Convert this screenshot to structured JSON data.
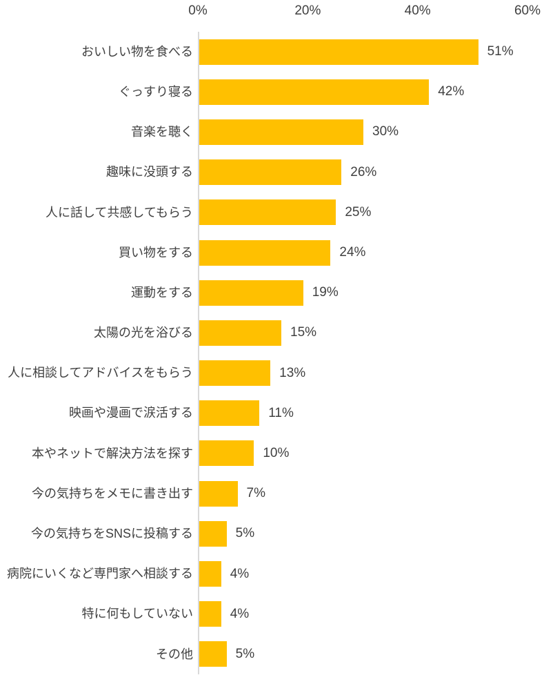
{
  "chart_data": {
    "type": "bar",
    "orientation": "horizontal",
    "title": "",
    "xlabel": "",
    "ylabel": "",
    "categories": [
      "おいしい物を食べる",
      "ぐっすり寝る",
      "音楽を聴く",
      "趣味に没頭する",
      "人に話して共感してもらう",
      "買い物をする",
      "運動をする",
      "太陽の光を浴びる",
      "人に相談してアドバイスをもらう",
      "映画や漫画で涙活する",
      "本やネットで解決方法を探す",
      "今の気持ちをメモに書き出す",
      "今の気持ちをSNSに投稿する",
      "病院にいくなど専門家へ相談する",
      "特に何もしていない",
      "その他"
    ],
    "values": [
      51,
      42,
      30,
      26,
      25,
      24,
      19,
      15,
      13,
      11,
      10,
      7,
      5,
      4,
      4,
      5
    ],
    "value_labels": [
      "51%",
      "42%",
      "30%",
      "26%",
      "25%",
      "24%",
      "19%",
      "15%",
      "13%",
      "11%",
      "10%",
      "7%",
      "5%",
      "4%",
      "4%",
      "5%"
    ],
    "xlim": [
      0,
      60
    ],
    "x_ticks": [
      0,
      20,
      40,
      60
    ],
    "x_tick_labels": [
      "0%",
      "20%",
      "40%",
      "60%"
    ],
    "tick_position": "top",
    "grid": false,
    "legend": false,
    "colors": {
      "bar": "#FFC000",
      "axis_line": "#D9D9D9",
      "text": "#404040",
      "background": "#FFFFFF"
    }
  }
}
